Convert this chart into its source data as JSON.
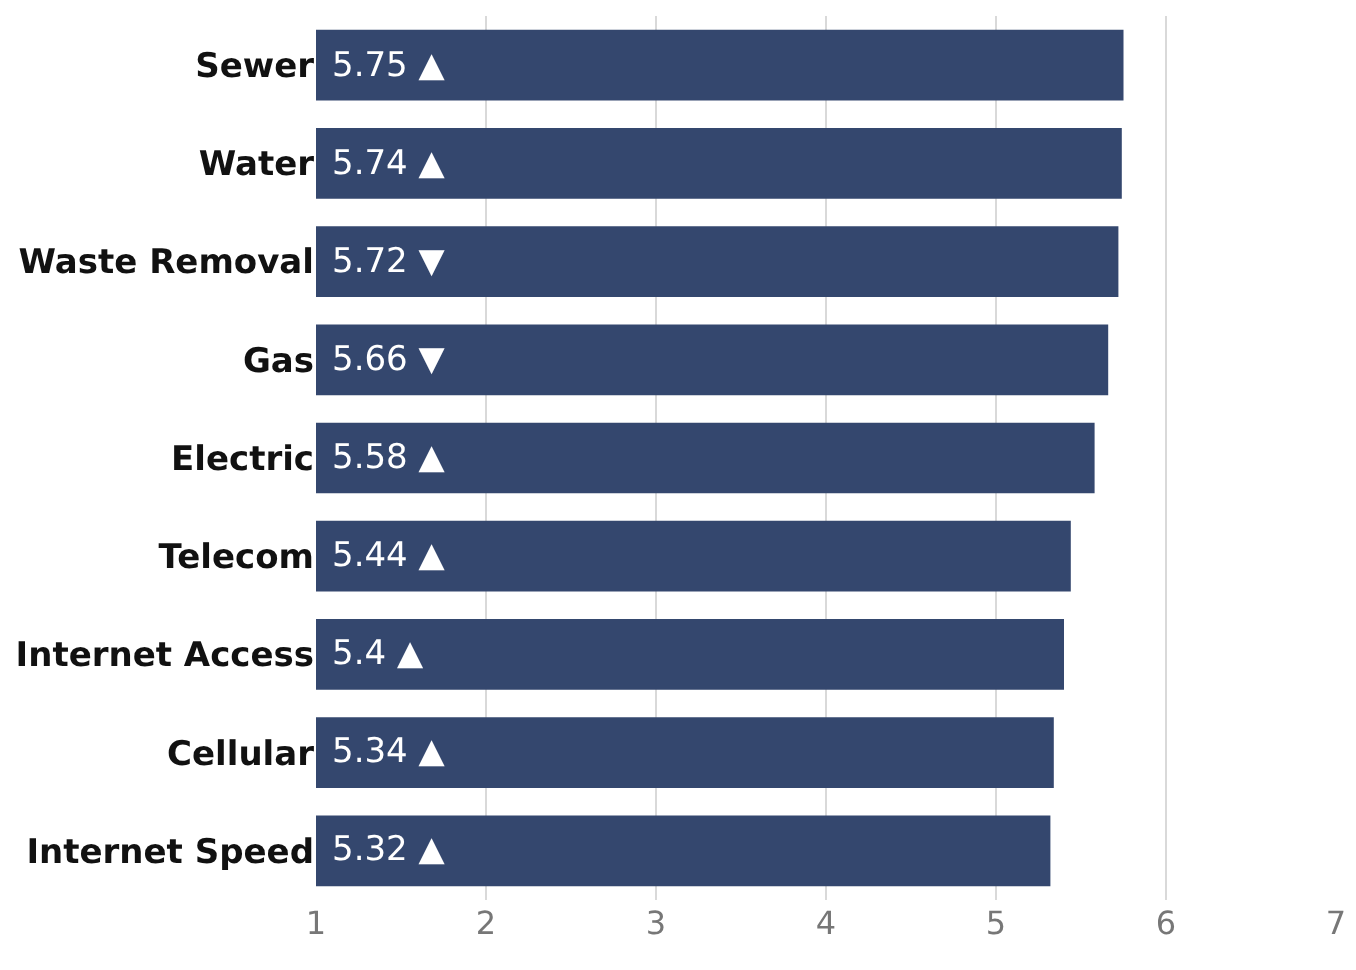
{
  "chart_data": {
    "type": "bar",
    "orientation": "horizontal",
    "categories": [
      "Sewer",
      "Water",
      "Waste Removal",
      "Gas",
      "Electric",
      "Telecom",
      "Internet Access",
      "Cellular",
      "Internet Speed"
    ],
    "values": [
      5.75,
      5.74,
      5.72,
      5.66,
      5.58,
      5.44,
      5.4,
      5.34,
      5.32
    ],
    "value_labels": [
      "5.75 ▲",
      "5.74 ▲",
      "5.72 ▼",
      "5.66 ▼",
      "5.58 ▲",
      "5.44 ▲",
      "5.4 ▲",
      "5.34 ▲",
      "5.32 ▲"
    ],
    "color": "#34476e",
    "xlim": [
      1,
      7
    ],
    "xticks": [
      1,
      2,
      3,
      4,
      5,
      6,
      7
    ],
    "grid": "x"
  }
}
